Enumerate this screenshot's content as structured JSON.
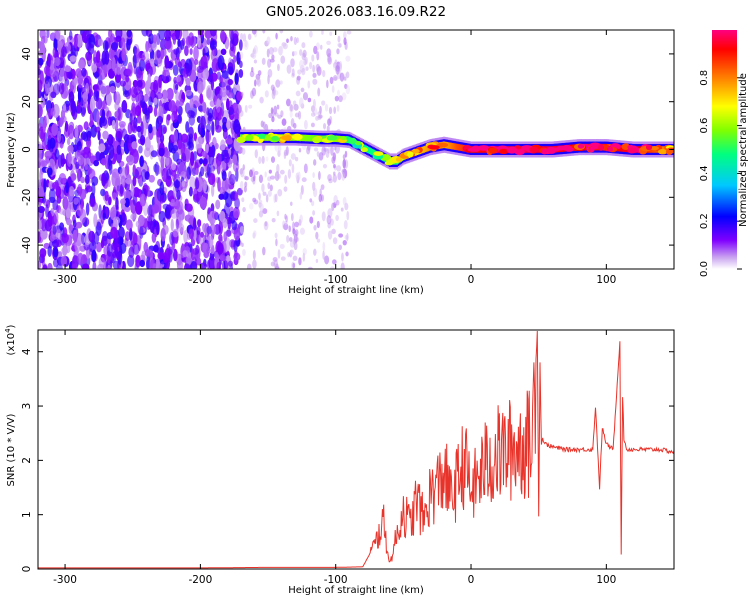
{
  "window": {
    "title": "GN05.2026.083.16.09.R22"
  },
  "chart_data": [
    {
      "type": "heatmap",
      "title": "GN05.2026.083.16.09.R22",
      "xlabel": "Height of straight line (km)",
      "ylabel": "Frequency (Hz)",
      "xlim": [
        -320,
        150
      ],
      "ylim": [
        -50,
        50
      ],
      "x_ticks": [
        -300,
        -200,
        -100,
        0,
        100
      ],
      "y_ticks": [
        -40,
        -20,
        0,
        20,
        40
      ],
      "colorbar": {
        "label": "Normalized spectral amplitude",
        "range": [
          0,
          1
        ],
        "ticks": [
          "0.0",
          "0.2",
          "0.4",
          "0.6",
          "0.8"
        ],
        "colors": [
          "#ffffff",
          "#c8a0f0",
          "#8000ff",
          "#0000ff",
          "#00c8ff",
          "#00ff80",
          "#80ff00",
          "#ffff00",
          "#ff8000",
          "#ff0000",
          "#ff0080"
        ]
      },
      "regions": [
        {
          "x": [
            -320,
            -170
          ],
          "description": "broadband noise, amplitude 0.3-0.6"
        },
        {
          "x": [
            -170,
            -90
          ],
          "description": "sparse faint noise, amplitude under 0.2"
        }
      ],
      "ridge": {
        "x": [
          -170,
          -150,
          -130,
          -110,
          -100,
          -90,
          -80,
          -70,
          -60,
          -55,
          -50,
          -40,
          -30,
          -20,
          -10,
          0,
          20,
          40,
          60,
          80,
          100,
          120,
          150
        ],
        "frequency": [
          5,
          5,
          5,
          4.5,
          4.5,
          4,
          1,
          -2,
          -5,
          -5,
          -3,
          -1,
          1,
          2,
          1,
          0,
          0,
          0,
          0,
          1,
          1,
          0,
          0
        ],
        "amplitude": [
          0.55,
          0.6,
          0.6,
          0.55,
          0.6,
          0.5,
          0.45,
          0.5,
          0.45,
          0.5,
          0.65,
          0.7,
          0.8,
          0.75,
          0.85,
          0.9,
          0.95,
          0.95,
          0.95,
          0.9,
          0.9,
          0.95,
          0.75
        ]
      }
    },
    {
      "type": "line",
      "xlabel": "Height of straight line (km)",
      "ylabel": "SNR (10 * V/V)",
      "y_multiplier": "(x10^4)",
      "multiplier_base": "(x10",
      "multiplier_exp": "4",
      "xlim": [
        -320,
        150
      ],
      "ylim": [
        0,
        4.4
      ],
      "x_ticks": [
        -300,
        -200,
        -100,
        0,
        100
      ],
      "y_ticks": [
        0,
        1,
        2,
        3,
        4
      ],
      "series": [
        {
          "color": "#e8332a",
          "x": [
            -320,
            -200,
            -150,
            -100,
            -80,
            -70,
            -65,
            -60,
            -55,
            -50,
            -45,
            -40,
            -35,
            -30,
            -25,
            -20,
            -15,
            -10,
            -5,
            0,
            10,
            20,
            30,
            40,
            45,
            49,
            50,
            51,
            52,
            53,
            55,
            60,
            70,
            80,
            90,
            92,
            95,
            97,
            100,
            105,
            110,
            111,
            112,
            113,
            115,
            120,
            130,
            140,
            150
          ],
          "y": [
            0.02,
            0.02,
            0.03,
            0.03,
            0.04,
            0.5,
            0.9,
            0.1,
            0.6,
            1.1,
            0.8,
            1.3,
            0.9,
            1.4,
            1.5,
            1.8,
            1.3,
            1.6,
            2.0,
            1.4,
            1.9,
            2.1,
            2.2,
            2.3,
            2.3,
            4.4,
            1.0,
            3.8,
            2.3,
            2.4,
            2.3,
            2.25,
            2.2,
            2.2,
            2.2,
            3.0,
            1.5,
            2.6,
            2.3,
            2.2,
            4.2,
            0.3,
            3.2,
            2.4,
            2.2,
            2.2,
            2.2,
            2.2,
            2.15
          ]
        }
      ]
    }
  ]
}
